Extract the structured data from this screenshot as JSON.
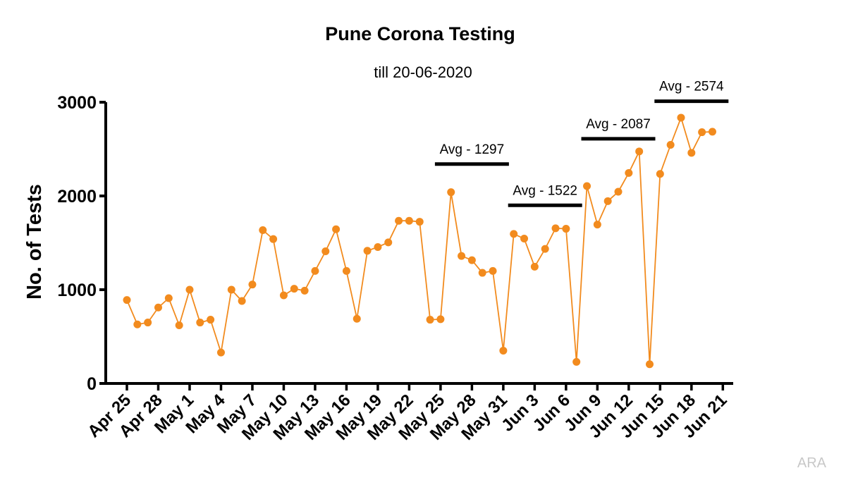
{
  "chart_data": {
    "type": "line",
    "title": "Pune Corona Testing",
    "subtitle": "till 20-06-2020",
    "xlabel": "",
    "ylabel": "No. of Tests",
    "ylim": [
      0,
      3000
    ],
    "yticks": [
      "0",
      "1000",
      "2000",
      "3000"
    ],
    "x_tick_labels": [
      "Apr 25",
      "Apr 28",
      "May 1",
      "May 4",
      "May 7",
      "May 10",
      "May 13",
      "May 16",
      "May 19",
      "May 22",
      "May 25",
      "May 28",
      "May 31",
      "Jun 3",
      "Jun 6",
      "Jun 9",
      "Jun 12",
      "Jun 15",
      "Jun 18",
      "Jun 21"
    ],
    "x_tick_step_days": 3,
    "x_start": "Apr 25",
    "series_color": "#f28b1e",
    "grid": false,
    "legend": "none",
    "values": [
      890,
      630,
      650,
      810,
      910,
      620,
      1000,
      650,
      680,
      330,
      1000,
      880,
      1055,
      1635,
      1540,
      940,
      1010,
      990,
      1200,
      1410,
      1645,
      1200,
      690,
      1415,
      1455,
      1505,
      1735,
      1735,
      1725,
      680,
      685,
      2040,
      1360,
      1315,
      1180,
      1200,
      350,
      1595,
      1545,
      1245,
      1435,
      1655,
      1650,
      230,
      2105,
      1695,
      1945,
      2045,
      2245,
      2475,
      205,
      2235,
      2545,
      2835,
      2460,
      2680,
      2685
    ],
    "annotations": [
      {
        "label": "Avg - 1297",
        "from_day": 30,
        "to_day": 36,
        "value": 2340
      },
      {
        "label": "Avg - 1522",
        "from_day": 37,
        "to_day": 43,
        "value": 1900
      },
      {
        "label": "Avg - 2087",
        "from_day": 44,
        "to_day": 50,
        "value": 2610
      },
      {
        "label": "Avg - 2574",
        "from_day": 51,
        "to_day": 57,
        "value": 3010
      }
    ]
  },
  "watermark": "ARA"
}
